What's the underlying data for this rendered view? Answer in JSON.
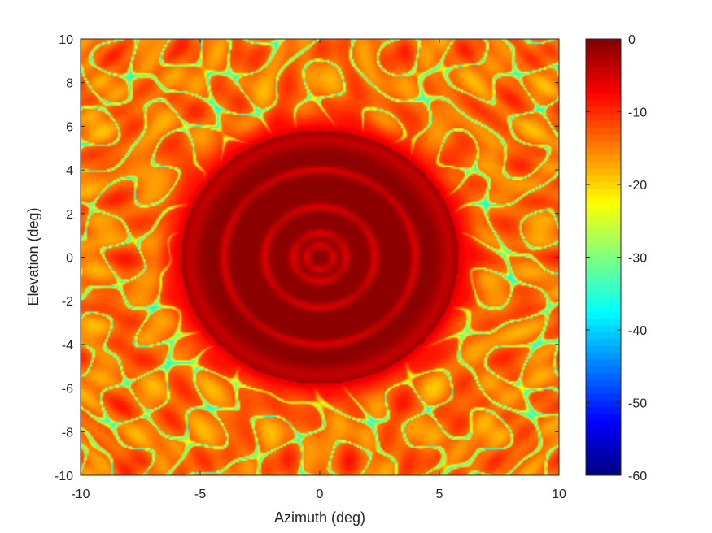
{
  "chart_data": {
    "type": "heatmap",
    "title": "",
    "xlabel": "Azimuth (deg)",
    "ylabel": "Elevation (deg)",
    "xlim": [
      -10,
      10
    ],
    "ylim": [
      -10,
      10
    ],
    "x_ticks": [
      -10,
      -5,
      0,
      5,
      10
    ],
    "y_ticks": [
      -10,
      -8,
      -6,
      -4,
      -2,
      0,
      2,
      4,
      6,
      8,
      10
    ],
    "colorbar": {
      "colormap": "jet",
      "clim": [
        -60,
        0
      ],
      "ticks": [
        0,
        -10,
        -20,
        -30,
        -40,
        -50,
        -60
      ]
    },
    "features": {
      "mainlobe_radius_deg": 5.8,
      "mainlobe_level_db": -1,
      "mainlobe_ring_radii_deg": [
        0.55,
        1.1,
        2.3,
        4.0
      ],
      "grating_null_ring_radius_deg": 6.0,
      "sidelobe_level_db_range": [
        -40,
        -10
      ]
    }
  }
}
